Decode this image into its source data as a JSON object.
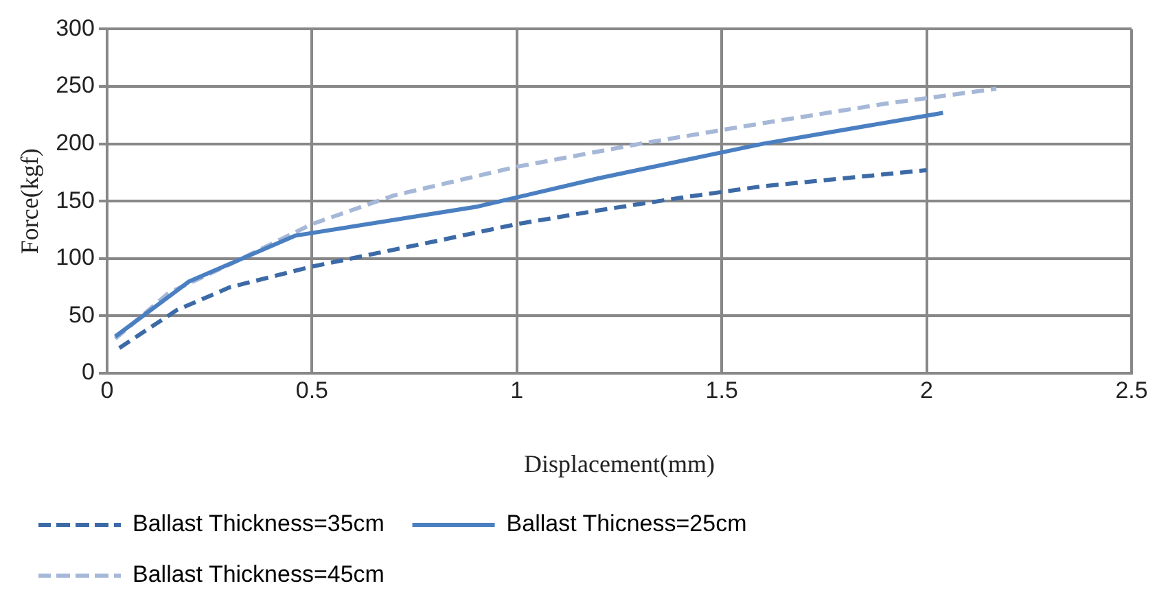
{
  "chart_data": {
    "type": "line",
    "xlabel": "Displacement(mm)",
    "ylabel": "Force(kgf)",
    "xlim": [
      0,
      2.5
    ],
    "xticks": [
      0,
      0.5,
      1,
      1.5,
      2,
      2.5
    ],
    "ylim": [
      0,
      300
    ],
    "yticks": [
      0,
      50,
      100,
      150,
      200,
      250,
      300
    ],
    "grid": true,
    "legend": "bottom",
    "marker": "none",
    "series": [
      {
        "name": "Ballast Thickness=35cm",
        "color": "#3c6aa6",
        "line_style": "dashed",
        "x": [
          0.03,
          0.17,
          0.3,
          0.5,
          0.8,
          1,
          1.2,
          1.4,
          1.6,
          2
        ],
        "values": [
          22,
          55,
          75,
          93,
          115,
          130,
          142,
          153,
          163,
          177
        ]
      },
      {
        "name": "Ballast Thicness=25cm",
        "color": "#4a7fc1",
        "line_style": "solid",
        "x": [
          0.02,
          0.2,
          0.46,
          0.9,
          1.2,
          1.6,
          2.04
        ],
        "values": [
          32,
          80,
          120,
          145,
          170,
          200,
          227
        ]
      },
      {
        "name": "Ballast Thickness=45cm",
        "color": "#a6b8d8",
        "line_style": "dashed",
        "x": [
          0.02,
          0.15,
          0.3,
          0.5,
          0.7,
          1,
          1.3,
          1.6,
          1.9,
          2.17
        ],
        "values": [
          30,
          70,
          95,
          130,
          155,
          180,
          200,
          218,
          235,
          248
        ]
      }
    ]
  }
}
